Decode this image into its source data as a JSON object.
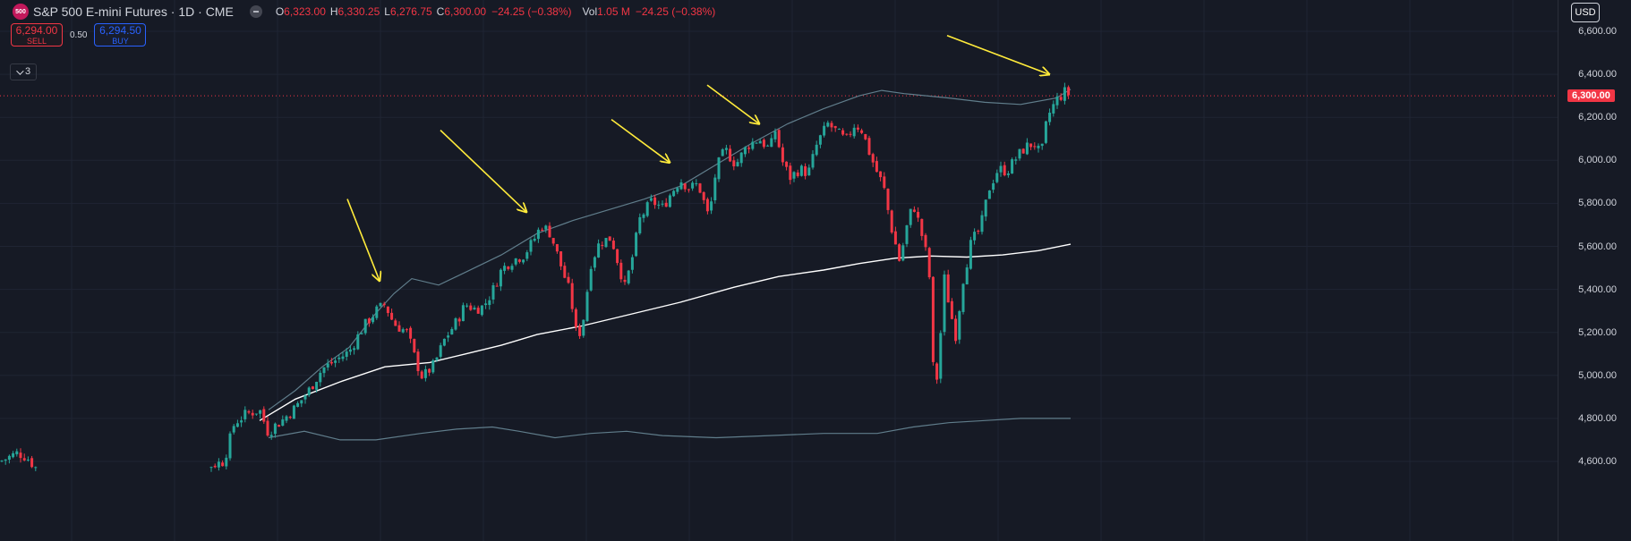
{
  "symbol": {
    "logo_text": "500",
    "title": "S&P 500 E-mini Futures · 1D · CME"
  },
  "ohlc": {
    "open_key": "O",
    "open": "6,323.00",
    "high_key": "H",
    "high": "6,330.25",
    "low_key": "L",
    "low": "6,276.75",
    "close_key": "C",
    "close": "6,300.00",
    "change": "−24.25 (−0.38%)",
    "vol_key": "Vol",
    "vol": "1.05 M",
    "vol_change": "−24.25 (−0.38%)"
  },
  "order": {
    "sell_price": "6,294.00",
    "sell_label": "SELL",
    "spread": "0.50",
    "buy_price": "6,294.50",
    "buy_label": "BUY"
  },
  "indicators": {
    "count": "3"
  },
  "currency": "USD",
  "last_price_label": "6,300.00",
  "colors": {
    "up": "#26a69a",
    "down": "#f23645",
    "background": "#161a25",
    "grid": "#1f2433",
    "sma": "#ffffff",
    "envelope": "#607d8b",
    "arrow": "#ffeb3b"
  },
  "chart_data": {
    "type": "candlestick",
    "title": "S&P 500 E-mini Futures · 1D · CME",
    "ylim": [
      4550,
      6700
    ],
    "y_ticks": [
      "6,600.00",
      "6,400.00",
      "6,200.00",
      "6,000.00",
      "5,800.00",
      "5,600.00",
      "5,400.00",
      "5,200.00",
      "5,000.00",
      "4,800.00",
      "4,600.00"
    ],
    "last_price": 6300,
    "grid": true,
    "price_path": [
      [
        0,
        4600
      ],
      [
        10,
        4620
      ],
      [
        20,
        4640
      ],
      [
        30,
        4620
      ],
      [
        40,
        4570
      ],
      [
        200,
        4570
      ],
      [
        230,
        4575
      ],
      [
        250,
        4600
      ],
      [
        262,
        4780
      ],
      [
        275,
        4820
      ],
      [
        290,
        4840
      ],
      [
        300,
        4730
      ],
      [
        305,
        4760
      ],
      [
        315,
        4790
      ],
      [
        330,
        4850
      ],
      [
        345,
        4930
      ],
      [
        360,
        5030
      ],
      [
        375,
        5070
      ],
      [
        390,
        5110
      ],
      [
        405,
        5220
      ],
      [
        420,
        5300
      ],
      [
        430,
        5330
      ],
      [
        440,
        5240
      ],
      [
        455,
        5200
      ],
      [
        465,
        5060
      ],
      [
        472,
        4990
      ],
      [
        485,
        5050
      ],
      [
        497,
        5170
      ],
      [
        510,
        5250
      ],
      [
        520,
        5330
      ],
      [
        530,
        5310
      ],
      [
        540,
        5320
      ],
      [
        550,
        5390
      ],
      [
        560,
        5490
      ],
      [
        570,
        5530
      ],
      [
        585,
        5560
      ],
      [
        595,
        5620
      ],
      [
        605,
        5700
      ],
      [
        615,
        5660
      ],
      [
        625,
        5530
      ],
      [
        637,
        5380
      ],
      [
        645,
        5160
      ],
      [
        652,
        5270
      ],
      [
        660,
        5520
      ],
      [
        670,
        5620
      ],
      [
        683,
        5640
      ],
      [
        690,
        5530
      ],
      [
        698,
        5410
      ],
      [
        705,
        5520
      ],
      [
        715,
        5730
      ],
      [
        728,
        5810
      ],
      [
        740,
        5780
      ],
      [
        750,
        5850
      ],
      [
        760,
        5910
      ],
      [
        770,
        5870
      ],
      [
        780,
        5890
      ],
      [
        792,
        5730
      ],
      [
        800,
        5960
      ],
      [
        810,
        6050
      ],
      [
        822,
        5980
      ],
      [
        835,
        6070
      ],
      [
        848,
        6100
      ],
      [
        860,
        6050
      ],
      [
        866,
        6140
      ],
      [
        875,
        5980
      ],
      [
        883,
        5920
      ],
      [
        893,
        5960
      ],
      [
        903,
        5940
      ],
      [
        913,
        6080
      ],
      [
        925,
        6170
      ],
      [
        935,
        6130
      ],
      [
        945,
        6090
      ],
      [
        955,
        6170
      ],
      [
        963,
        6140
      ],
      [
        970,
        6050
      ],
      [
        978,
        5960
      ],
      [
        987,
        5880
      ],
      [
        995,
        5700
      ],
      [
        1005,
        5530
      ],
      [
        1013,
        5690
      ],
      [
        1020,
        5800
      ],
      [
        1025,
        5730
      ],
      [
        1033,
        5600
      ],
      [
        1038,
        5480
      ],
      [
        1042,
        5050
      ],
      [
        1046,
        4960
      ],
      [
        1050,
        5150
      ],
      [
        1055,
        5450
      ],
      [
        1062,
        5290
      ],
      [
        1068,
        5180
      ],
      [
        1075,
        5430
      ],
      [
        1085,
        5620
      ],
      [
        1095,
        5680
      ],
      [
        1105,
        5870
      ],
      [
        1115,
        5960
      ],
      [
        1125,
        5950
      ],
      [
        1135,
        6010
      ],
      [
        1145,
        6060
      ],
      [
        1155,
        6080
      ],
      [
        1163,
        6020
      ],
      [
        1170,
        6200
      ],
      [
        1180,
        6280
      ],
      [
        1190,
        6320
      ],
      [
        1196,
        6300
      ]
    ],
    "series": [
      {
        "kind": "sma",
        "points": [
          [
            290,
            4790
          ],
          [
            330,
            4890
          ],
          [
            380,
            4970
          ],
          [
            430,
            5040
          ],
          [
            480,
            5060
          ],
          [
            520,
            5100
          ],
          [
            560,
            5140
          ],
          [
            600,
            5190
          ],
          [
            650,
            5230
          ],
          [
            700,
            5280
          ],
          [
            760,
            5340
          ],
          [
            820,
            5410
          ],
          [
            870,
            5460
          ],
          [
            920,
            5490
          ],
          [
            960,
            5520
          ],
          [
            1000,
            5545
          ],
          [
            1040,
            5555
          ],
          [
            1080,
            5550
          ],
          [
            1120,
            5560
          ],
          [
            1160,
            5580
          ],
          [
            1196,
            5610
          ]
        ]
      },
      {
        "kind": "upper-envelope",
        "points": [
          [
            300,
            4840
          ],
          [
            330,
            4930
          ],
          [
            360,
            5040
          ],
          [
            390,
            5130
          ],
          [
            420,
            5290
          ],
          [
            440,
            5380
          ],
          [
            460,
            5450
          ],
          [
            490,
            5420
          ],
          [
            520,
            5480
          ],
          [
            560,
            5560
          ],
          [
            600,
            5660
          ],
          [
            640,
            5720
          ],
          [
            680,
            5770
          ],
          [
            720,
            5820
          ],
          [
            760,
            5880
          ],
          [
            800,
            5980
          ],
          [
            840,
            6080
          ],
          [
            880,
            6170
          ],
          [
            920,
            6240
          ],
          [
            960,
            6300
          ],
          [
            985,
            6325
          ],
          [
            1010,
            6310
          ],
          [
            1060,
            6290
          ],
          [
            1100,
            6270
          ],
          [
            1140,
            6260
          ],
          [
            1180,
            6290
          ],
          [
            1196,
            6330
          ]
        ]
      },
      {
        "kind": "lower-envelope",
        "points": [
          [
            300,
            4710
          ],
          [
            340,
            4740
          ],
          [
            380,
            4700
          ],
          [
            420,
            4700
          ],
          [
            470,
            4730
          ],
          [
            510,
            4750
          ],
          [
            550,
            4760
          ],
          [
            580,
            4740
          ],
          [
            620,
            4710
          ],
          [
            660,
            4730
          ],
          [
            700,
            4740
          ],
          [
            740,
            4720
          ],
          [
            800,
            4710
          ],
          [
            860,
            4720
          ],
          [
            920,
            4730
          ],
          [
            980,
            4730
          ],
          [
            1020,
            4760
          ],
          [
            1060,
            4780
          ],
          [
            1100,
            4790
          ],
          [
            1140,
            4800
          ],
          [
            1196,
            4800
          ]
        ]
      }
    ],
    "annotations": [
      {
        "type": "arrow",
        "from": [
          388,
          5820
        ],
        "to": [
          424,
          5440
        ]
      },
      {
        "type": "arrow",
        "from": [
          492,
          6140
        ],
        "to": [
          588,
          5760
        ]
      },
      {
        "type": "arrow",
        "from": [
          683,
          6190
        ],
        "to": [
          748,
          5990
        ]
      },
      {
        "type": "arrow",
        "from": [
          790,
          6350
        ],
        "to": [
          848,
          6170
        ]
      },
      {
        "type": "arrow",
        "from": [
          1058,
          6580
        ],
        "to": [
          1172,
          6400
        ]
      }
    ]
  }
}
